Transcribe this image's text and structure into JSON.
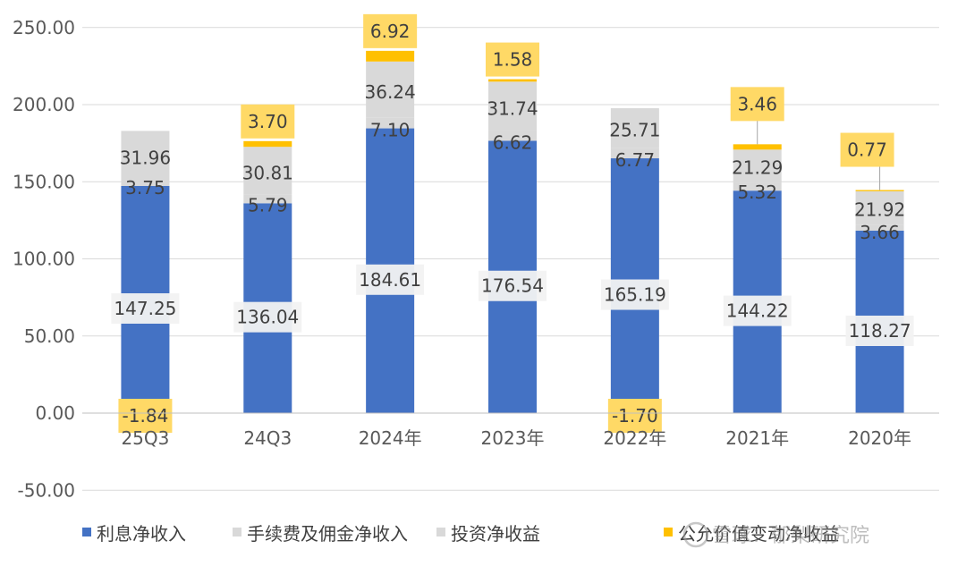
{
  "chart_data": {
    "type": "bar",
    "stacked": true,
    "categories": [
      "25Q3",
      "24Q3",
      "2024年",
      "2023年",
      "2022年",
      "2021年",
      "2020年"
    ],
    "series": [
      {
        "name": "利息净收入",
        "color": "#4472C4",
        "values": [
          147.25,
          136.04,
          184.61,
          176.54,
          165.19,
          144.22,
          118.27
        ]
      },
      {
        "name": "手续费及佣金净收入",
        "color": "#D9D9D9",
        "values": [
          3.75,
          5.79,
          7.1,
          6.62,
          6.77,
          5.32,
          3.66
        ]
      },
      {
        "name": "投资净收益",
        "color": "#D9D9D9",
        "values": [
          31.96,
          30.81,
          36.24,
          31.74,
          25.71,
          21.29,
          21.92
        ]
      },
      {
        "name": "公允价值变动净收益",
        "color": "#FFC000",
        "values": [
          -1.84,
          3.7,
          6.92,
          1.58,
          -1.7,
          3.46,
          0.77
        ]
      }
    ],
    "ylim": [
      -50,
      250
    ],
    "yticks": [
      "250.00",
      "200.00",
      "150.00",
      "100.00",
      "50.00",
      "0.00",
      "-50.00"
    ],
    "ytick_values": [
      250,
      200,
      150,
      100,
      50,
      0,
      -50
    ],
    "grid": true,
    "legend_position": "bottom"
  },
  "watermark": "雪球：郁梨研究院"
}
